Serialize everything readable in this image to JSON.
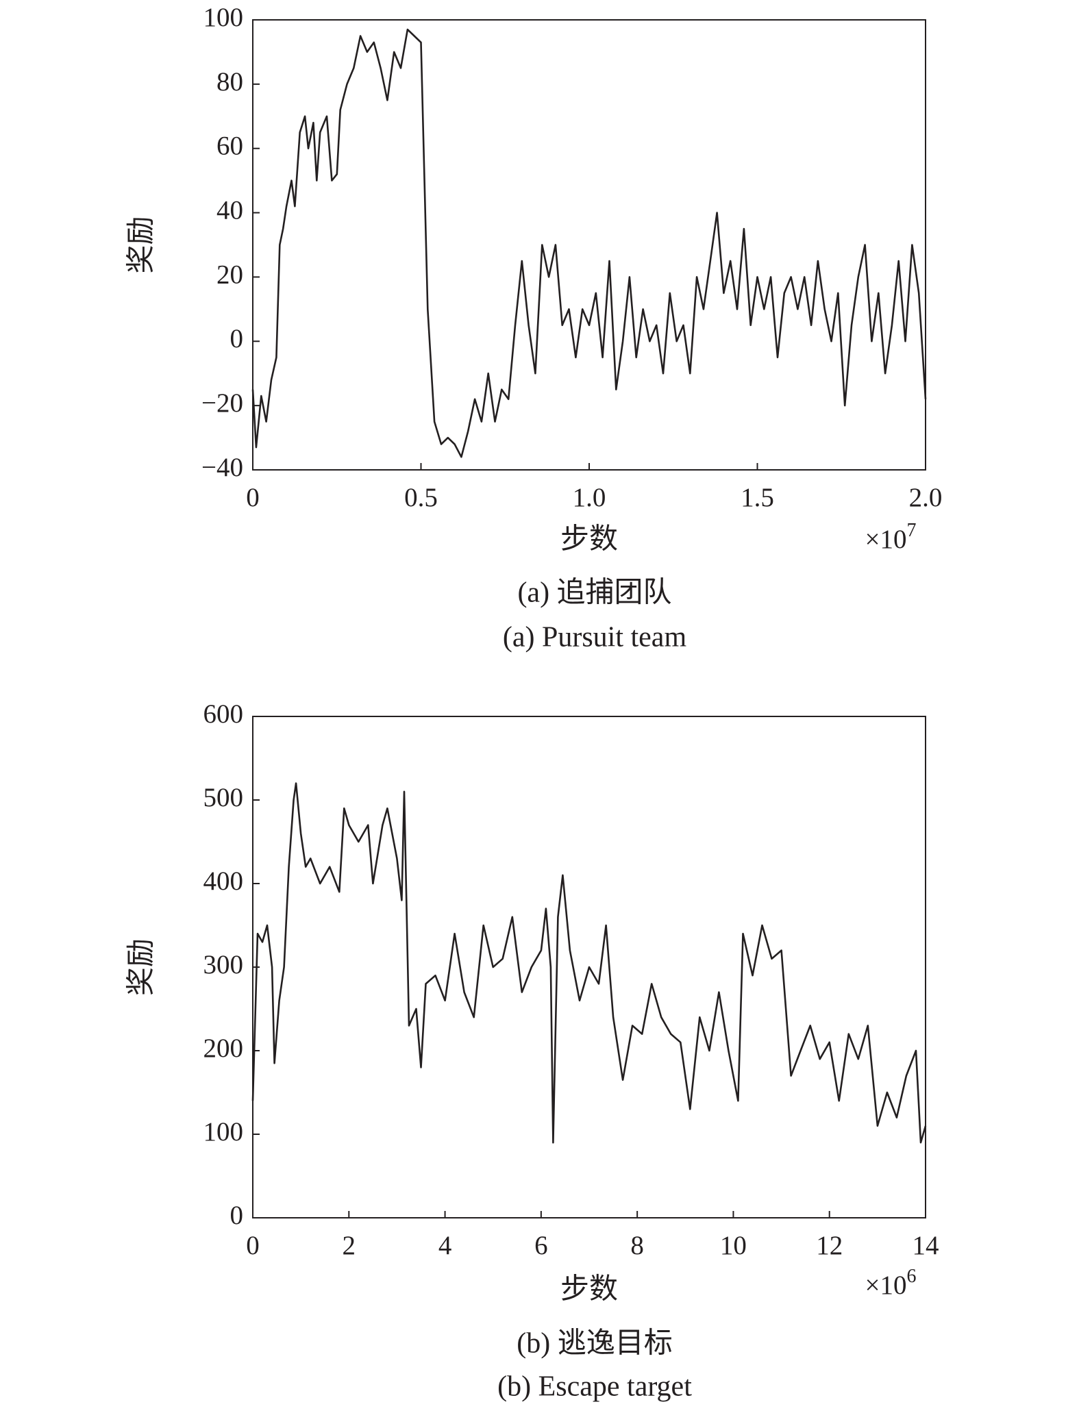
{
  "chart_data": [
    {
      "type": "line",
      "ylabel": "奖励",
      "xlabel": "步数",
      "x_multiplier_text": "×10",
      "x_multiplier_power": 7,
      "caption": "(a) 追捕团队",
      "caption_en": "(a) Pursuit team",
      "xlim": [
        0,
        2
      ],
      "xticks": [
        0,
        0.5,
        {
          "value": 1,
          "label": "1.0"
        },
        1.5,
        {
          "value": 2,
          "label": "2.0"
        }
      ],
      "ylim": [
        -40,
        100
      ],
      "yticks": [
        {
          "value": -40,
          "label": "−40"
        },
        {
          "value": -20,
          "label": "−20"
        },
        0,
        20,
        40,
        60,
        80,
        100
      ],
      "color": "#231f20",
      "x": [
        0,
        0.01,
        0.025,
        0.04,
        0.055,
        0.07,
        0.08,
        0.09,
        0.1,
        0.115,
        0.125,
        0.14,
        0.155,
        0.165,
        0.18,
        0.19,
        0.2,
        0.22,
        0.235,
        0.25,
        0.26,
        0.28,
        0.3,
        0.32,
        0.34,
        0.36,
        0.38,
        0.4,
        0.42,
        0.44,
        0.46,
        0.48,
        0.5,
        0.52,
        0.54,
        0.56,
        0.58,
        0.6,
        0.62,
        0.64,
        0.66,
        0.68,
        0.7,
        0.72,
        0.74,
        0.76,
        0.78,
        0.8,
        0.82,
        0.84,
        0.86,
        0.88,
        0.9,
        0.92,
        0.94,
        0.96,
        0.98,
        1.0,
        1.02,
        1.04,
        1.06,
        1.08,
        1.1,
        1.12,
        1.14,
        1.16,
        1.18,
        1.2,
        1.22,
        1.24,
        1.26,
        1.28,
        1.3,
        1.32,
        1.34,
        1.36,
        1.38,
        1.4,
        1.42,
        1.44,
        1.46,
        1.48,
        1.5,
        1.52,
        1.54,
        1.56,
        1.58,
        1.6,
        1.62,
        1.64,
        1.66,
        1.68,
        1.7,
        1.72,
        1.74,
        1.76,
        1.78,
        1.8,
        1.82,
        1.84,
        1.86,
        1.88,
        1.9,
        1.92,
        1.94,
        1.96,
        1.98,
        2.0
      ],
      "values": [
        -15,
        -33,
        -17,
        -25,
        -12,
        -5,
        30,
        35,
        42,
        50,
        42,
        65,
        70,
        60,
        68,
        50,
        65,
        70,
        50,
        52,
        72,
        80,
        85,
        95,
        90,
        93,
        85,
        75,
        90,
        85,
        97,
        95,
        93,
        10,
        -25,
        -32,
        -30,
        -32,
        -36,
        -28,
        -18,
        -25,
        -10,
        -25,
        -15,
        -18,
        5,
        25,
        5,
        -10,
        30,
        20,
        30,
        5,
        10,
        -5,
        10,
        5,
        15,
        -5,
        25,
        -15,
        0,
        20,
        -5,
        10,
        0,
        5,
        -10,
        15,
        0,
        5,
        -10,
        20,
        10,
        25,
        40,
        15,
        25,
        10,
        35,
        5,
        20,
        10,
        20,
        -5,
        15,
        20,
        10,
        20,
        5,
        25,
        10,
        0,
        15,
        -20,
        5,
        20,
        30,
        0,
        15,
        -10,
        5,
        25,
        0,
        30,
        15,
        -18
      ]
    },
    {
      "type": "line",
      "ylabel": "奖励",
      "xlabel": "步数",
      "x_multiplier_text": "×10",
      "x_multiplier_power": 6,
      "caption": "(b) 逃逸目标",
      "caption_en": "(b) Escape target",
      "xlim": [
        0,
        14
      ],
      "xticks": [
        0,
        2,
        4,
        6,
        8,
        10,
        12,
        14
      ],
      "ylim": [
        0,
        600
      ],
      "yticks": [
        0,
        100,
        200,
        300,
        400,
        500,
        600
      ],
      "color": "#231f20",
      "x": [
        0,
        0.1,
        0.2,
        0.3,
        0.4,
        0.45,
        0.55,
        0.65,
        0.75,
        0.85,
        0.9,
        1.0,
        1.1,
        1.2,
        1.4,
        1.6,
        1.8,
        1.9,
        2.0,
        2.2,
        2.4,
        2.5,
        2.7,
        2.8,
        3.0,
        3.1,
        3.15,
        3.25,
        3.4,
        3.5,
        3.6,
        3.8,
        4.0,
        4.2,
        4.4,
        4.6,
        4.8,
        5.0,
        5.2,
        5.4,
        5.6,
        5.8,
        6.0,
        6.1,
        6.2,
        6.25,
        6.35,
        6.45,
        6.6,
        6.8,
        7.0,
        7.2,
        7.35,
        7.5,
        7.7,
        7.9,
        8.1,
        8.3,
        8.5,
        8.7,
        8.9,
        9.1,
        9.3,
        9.5,
        9.7,
        9.9,
        10.1,
        10.2,
        10.4,
        10.6,
        10.8,
        11.0,
        11.2,
        11.4,
        11.6,
        11.8,
        12.0,
        12.2,
        12.4,
        12.6,
        12.8,
        13.0,
        13.2,
        13.4,
        13.6,
        13.8,
        13.9,
        14.0
      ],
      "values": [
        140,
        340,
        330,
        350,
        300,
        185,
        260,
        300,
        420,
        500,
        520,
        460,
        420,
        430,
        400,
        420,
        390,
        490,
        470,
        450,
        470,
        400,
        470,
        490,
        430,
        380,
        510,
        230,
        250,
        180,
        280,
        290,
        260,
        340,
        270,
        240,
        350,
        300,
        310,
        360,
        270,
        300,
        320,
        370,
        300,
        90,
        360,
        410,
        320,
        260,
        300,
        280,
        350,
        240,
        165,
        230,
        220,
        280,
        240,
        220,
        210,
        130,
        240,
        200,
        270,
        200,
        140,
        340,
        290,
        350,
        310,
        320,
        170,
        200,
        230,
        190,
        210,
        140,
        220,
        190,
        230,
        110,
        150,
        120,
        170,
        200,
        90,
        110
      ]
    }
  ]
}
